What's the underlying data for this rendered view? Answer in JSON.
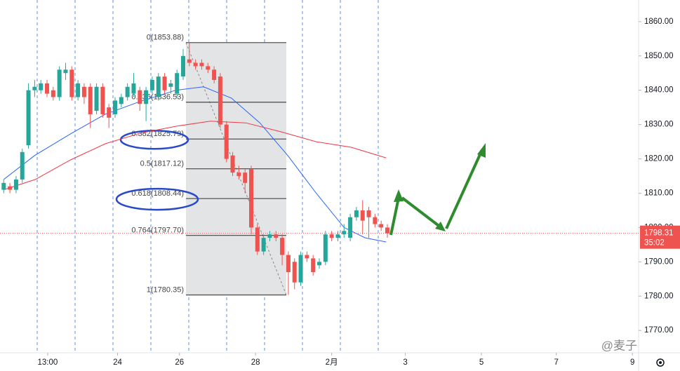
{
  "chart_data": {
    "type": "candlestick",
    "xlim": [
      -0.6,
      102.6
    ],
    "ylim": [
      1763.5,
      1866.3
    ],
    "xticks": [
      {
        "value": 7.1,
        "label": "13:00"
      },
      {
        "value": 18.4,
        "label": "24"
      },
      {
        "value": 28.4,
        "label": "26"
      },
      {
        "value": 40.7,
        "label": "28"
      },
      {
        "value": 53,
        "label": "2月"
      },
      {
        "value": 64.9,
        "label": "3"
      },
      {
        "value": 77.2,
        "label": "5"
      },
      {
        "value": 89.3,
        "label": "7"
      },
      {
        "value": 101.6,
        "label": "9"
      }
    ],
    "yticks": [
      {
        "value": 1770,
        "label": "1770.00"
      },
      {
        "value": 1780,
        "label": "1780.00"
      },
      {
        "value": 1790,
        "label": "1790.00"
      },
      {
        "value": 1800,
        "label": "1800.00"
      },
      {
        "value": 1810,
        "label": "1810.00"
      },
      {
        "value": 1820,
        "label": "1820.00"
      },
      {
        "value": 1830,
        "label": "1830.00"
      },
      {
        "value": 1840,
        "label": "1840.00"
      },
      {
        "value": 1850,
        "label": "1850.00"
      },
      {
        "value": 1860,
        "label": "1860.00"
      }
    ],
    "up_color": "#26a69a",
    "down_color": "#ef5350",
    "candles": {
      "x": [
        0,
        1,
        2,
        3,
        4,
        5,
        6,
        7,
        8,
        9,
        10,
        11,
        12,
        13,
        14,
        15,
        16,
        17,
        18,
        19,
        20,
        21,
        22,
        23,
        24,
        25,
        26,
        27,
        28,
        29,
        30,
        31,
        32,
        33,
        34,
        35,
        36,
        37,
        38,
        39,
        40,
        41,
        42,
        43,
        44,
        45,
        46,
        47,
        48,
        49,
        50,
        51,
        52,
        53,
        54,
        55,
        56,
        57,
        58,
        59,
        60,
        61,
        62
      ],
      "open": [
        1811,
        1812,
        1811,
        1814,
        1824,
        1840,
        1840,
        1842,
        1840,
        1838,
        1845,
        1846,
        1838,
        1841,
        1841,
        1834,
        1841,
        1835,
        1833,
        1836,
        1838,
        1839,
        1840,
        1836,
        1840,
        1838,
        1844,
        1841,
        1839,
        1844,
        1849,
        1848,
        1848,
        1847,
        1846,
        1844,
        1830,
        1821,
        1816,
        1816,
        1817,
        1800,
        1793,
        1797,
        1798,
        1797,
        1792,
        1790,
        1784,
        1792,
        1791,
        1789,
        1790,
        1798,
        1797,
        1798,
        1797,
        1803,
        1805,
        1805,
        1803,
        1801,
        1800
      ],
      "high": [
        1814,
        1813,
        1815,
        1823,
        1842,
        1843,
        1843,
        1843,
        1841,
        1847,
        1848,
        1847,
        1843,
        1842,
        1842,
        1842,
        1842,
        1836,
        1838,
        1839,
        1842,
        1845,
        1841,
        1841,
        1844,
        1845,
        1845,
        1843,
        1846,
        1852,
        1853.88,
        1849,
        1849,
        1848,
        1847,
        1845,
        1831,
        1822,
        1818,
        1817,
        1818,
        1801,
        1798,
        1799,
        1799,
        1798,
        1793,
        1791,
        1793,
        1793,
        1792,
        1791,
        1799,
        1799,
        1799,
        1801,
        1804,
        1806,
        1808,
        1806,
        1804,
        1802,
        1801
      ],
      "low": [
        1810,
        1810,
        1810,
        1813,
        1823,
        1838,
        1839,
        1838,
        1837,
        1837,
        1843,
        1837,
        1837,
        1836,
        1829,
        1833,
        1832,
        1829,
        1832,
        1835,
        1837,
        1838,
        1834,
        1831,
        1839,
        1837,
        1839,
        1839,
        1838,
        1843,
        1847,
        1846,
        1846,
        1845,
        1842,
        1829,
        1819,
        1815,
        1814,
        1810,
        1798,
        1792,
        1792,
        1796,
        1796,
        1789,
        1780.35,
        1782,
        1783,
        1790,
        1786,
        1788,
        1789,
        1796,
        1796,
        1797,
        1796,
        1802,
        1798,
        1797,
        1800,
        1799,
        1797
      ],
      "close": [
        1813,
        1811,
        1814,
        1822,
        1840,
        1841,
        1842,
        1839,
        1838,
        1846,
        1846,
        1838,
        1842,
        1838,
        1833,
        1841,
        1833,
        1832,
        1837,
        1838,
        1841,
        1842,
        1836,
        1840,
        1843,
        1844,
        1840,
        1842,
        1845,
        1850,
        1848,
        1847,
        1847,
        1846,
        1843,
        1830,
        1820,
        1816,
        1815,
        1813,
        1800,
        1793,
        1797,
        1798,
        1797,
        1792,
        1787,
        1784,
        1792,
        1791,
        1787,
        1790,
        1798,
        1797,
        1798,
        1799,
        1803,
        1805,
        1802,
        1803,
        1801,
        1800,
        1798.31
      ]
    },
    "moving_averages": [
      {
        "color": "#2962ff",
        "x": [
          0,
          5,
          11,
          16.4,
          22,
          27.8,
          32.3,
          36.8,
          41.4,
          45.9,
          50.5,
          55,
          58.4,
          61.8
        ],
        "values": [
          1814,
          1821,
          1827.5,
          1833,
          1836.7,
          1840,
          1841,
          1837.7,
          1830.5,
          1821,
          1810,
          1800,
          1797,
          1795.8
        ]
      },
      {
        "color": "#f23645",
        "x": [
          0,
          5.1,
          10.8,
          16.4,
          22.1,
          27.8,
          33.4,
          39.1,
          44.8,
          50.5,
          56.1,
          61.8
        ],
        "values": [
          1811,
          1814,
          1819.7,
          1824.4,
          1827.5,
          1829.5,
          1831,
          1830.5,
          1827.9,
          1825,
          1823.4,
          1820.3
        ]
      }
    ],
    "fib_levels": [
      {
        "value": 1853.88,
        "label": "0(1853.88)"
      },
      {
        "value": 1836.53,
        "label": "0.236(1836.53)"
      },
      {
        "value": 1825.79,
        "label": "0.382(1825.79)"
      },
      {
        "value": 1817.12,
        "label": "0.5(1817.12)"
      },
      {
        "value": 1808.44,
        "label": "0.618(1808.44)"
      },
      {
        "value": 1797.7,
        "label": "0.764(1797.70)"
      },
      {
        "value": 1780.35,
        "label": "1(1780.35)"
      }
    ],
    "last_price": 1798.31,
    "countdown": "35:02",
    "watermark": "@麦子"
  }
}
